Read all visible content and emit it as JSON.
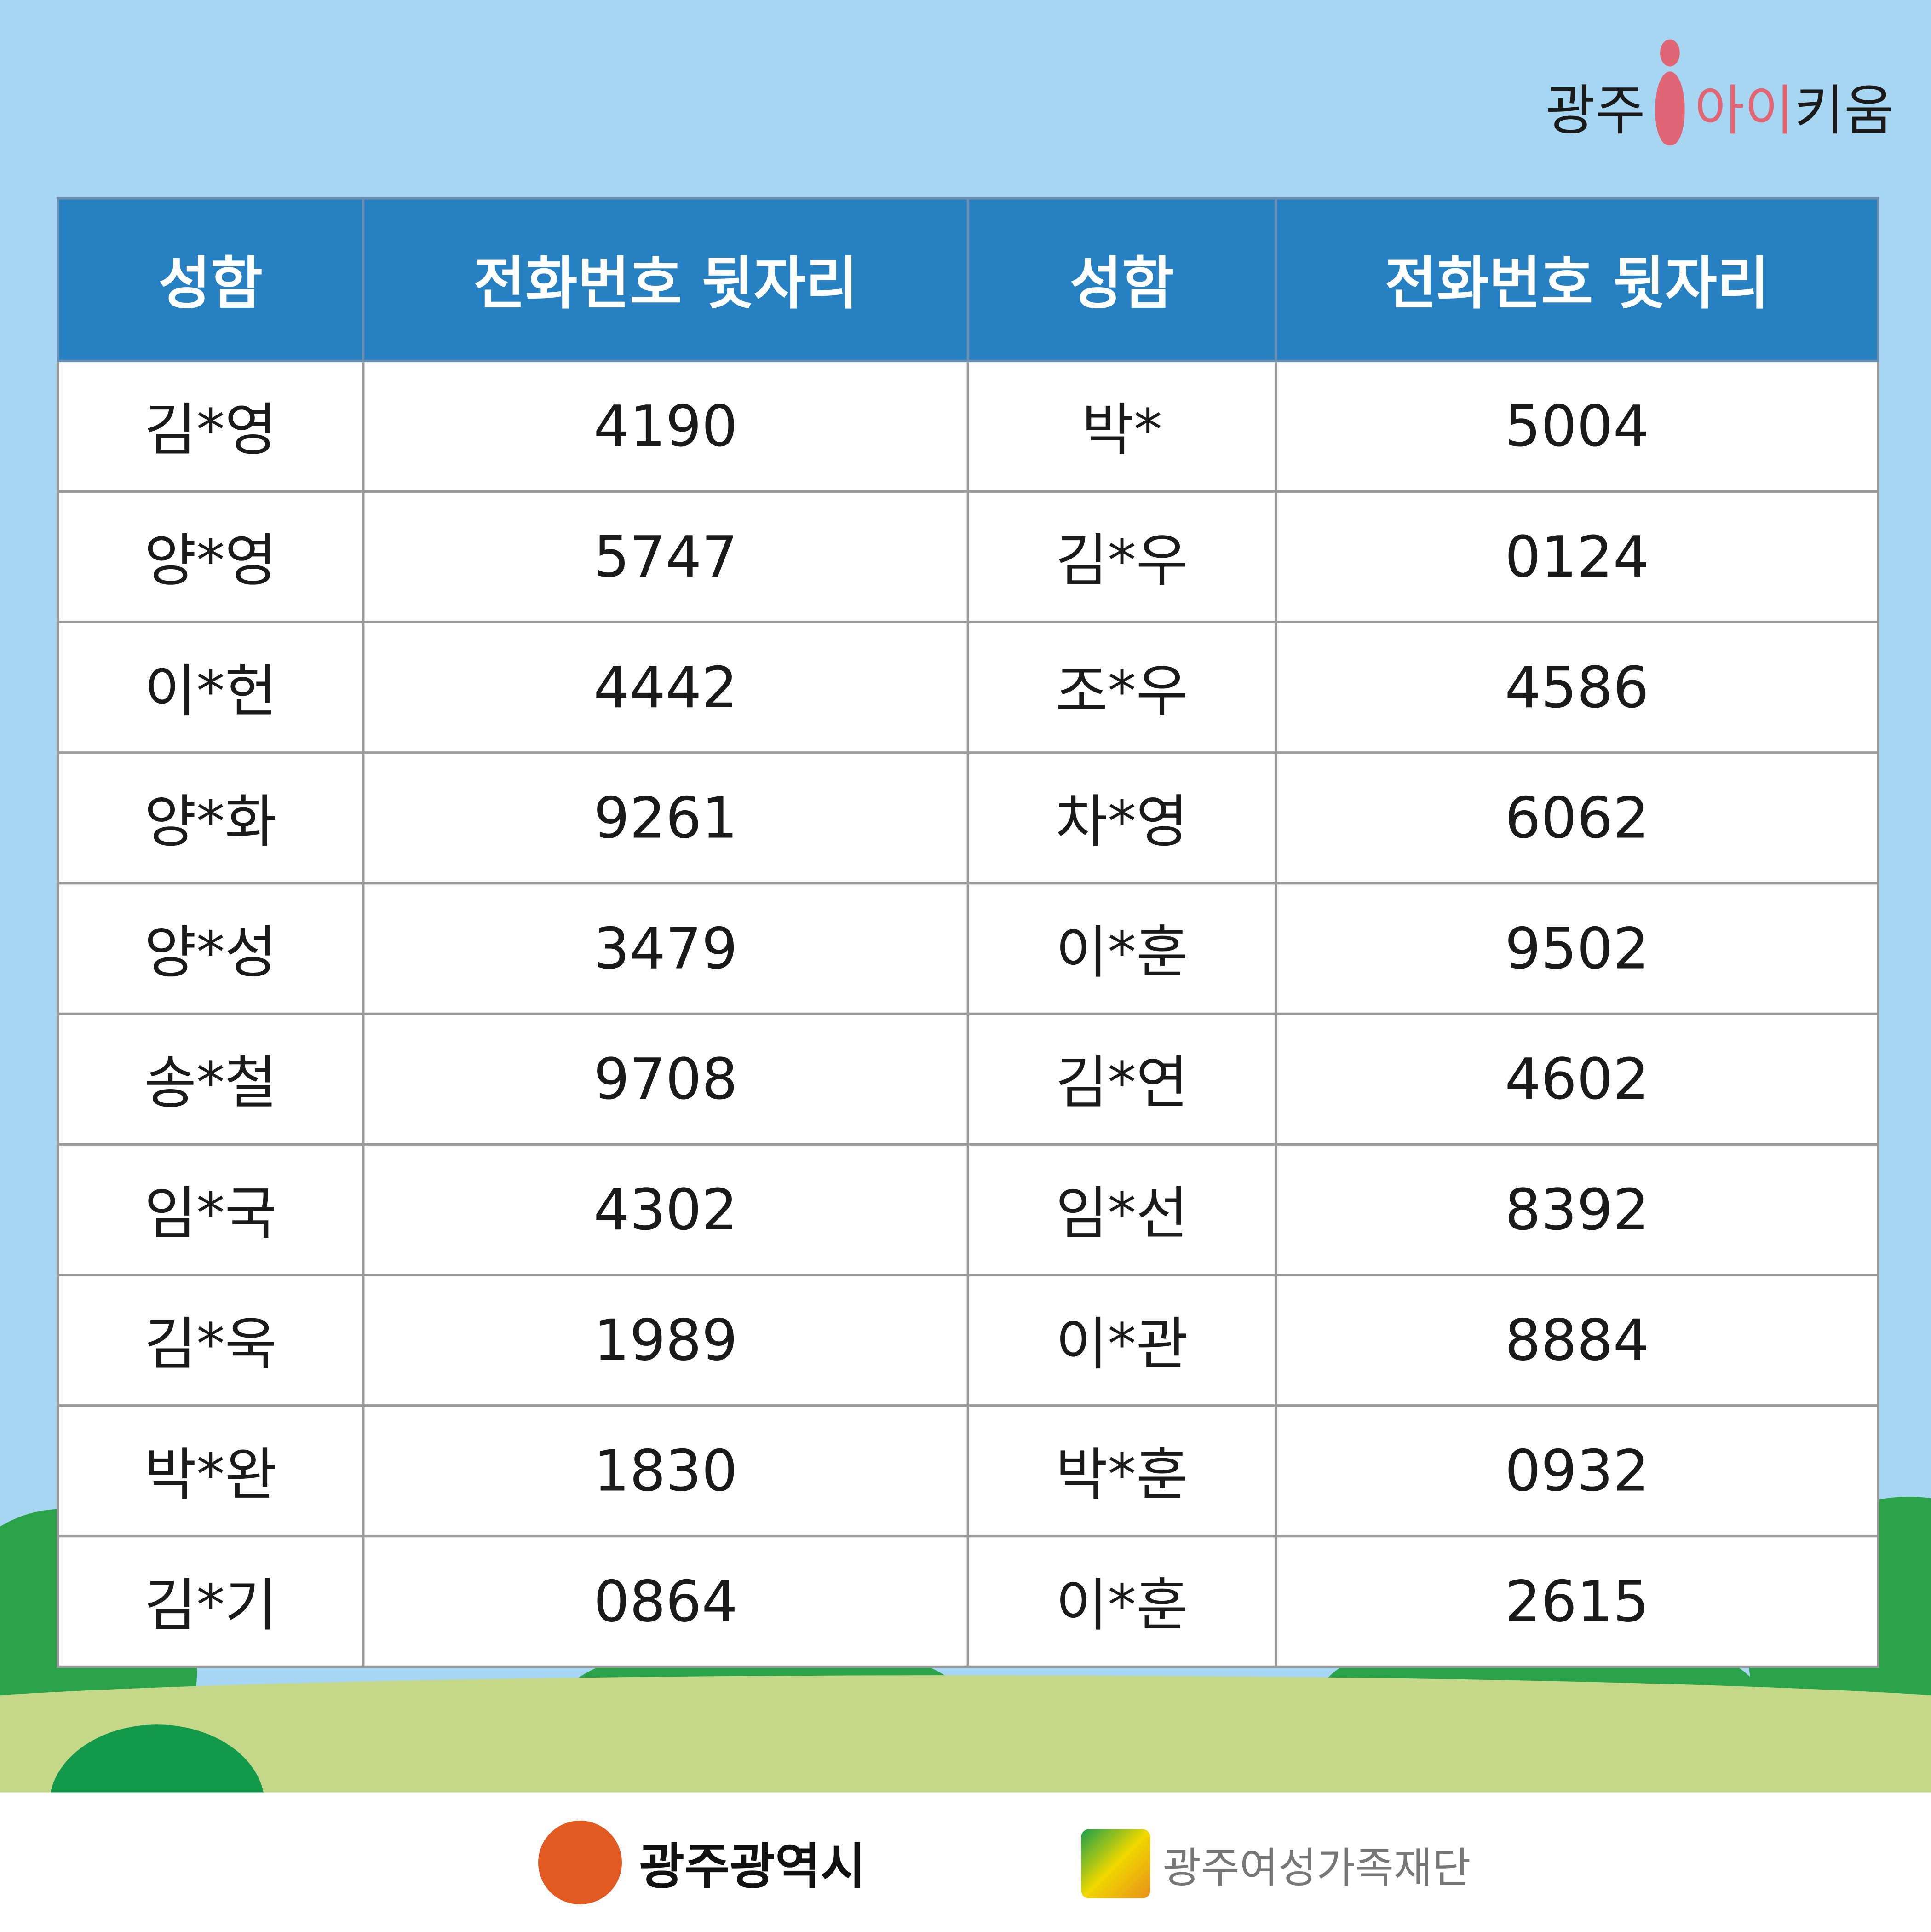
{
  "logo": {
    "prefix": "광주",
    "highlight": "아이",
    "suffix": "키움"
  },
  "table": {
    "headers": [
      "성함",
      "전화번호 뒷자리",
      "성함",
      "전화번호 뒷자리"
    ],
    "rows": [
      [
        "김*영",
        "4190",
        "박*",
        "5004"
      ],
      [
        "양*영",
        "5747",
        "김*우",
        "0124"
      ],
      [
        "이*헌",
        "4442",
        "조*우",
        "4586"
      ],
      [
        "양*화",
        "9261",
        "차*영",
        "6062"
      ],
      [
        "양*성",
        "3479",
        "이*훈",
        "9502"
      ],
      [
        "송*철",
        "9708",
        "김*연",
        "4602"
      ],
      [
        "임*국",
        "4302",
        "임*선",
        "8392"
      ],
      [
        "김*욱",
        "1989",
        "이*관",
        "8884"
      ],
      [
        "박*완",
        "1830",
        "박*훈",
        "0932"
      ],
      [
        "김*기",
        "0864",
        "이*훈",
        "2615"
      ]
    ]
  },
  "footer": {
    "city": "광주광역시",
    "foundation": "광주여성가족재단"
  },
  "colors": {
    "background": "#a6d6f2",
    "header": "#2680c2",
    "accent": "#e06676",
    "grass": "#c5d88a"
  }
}
